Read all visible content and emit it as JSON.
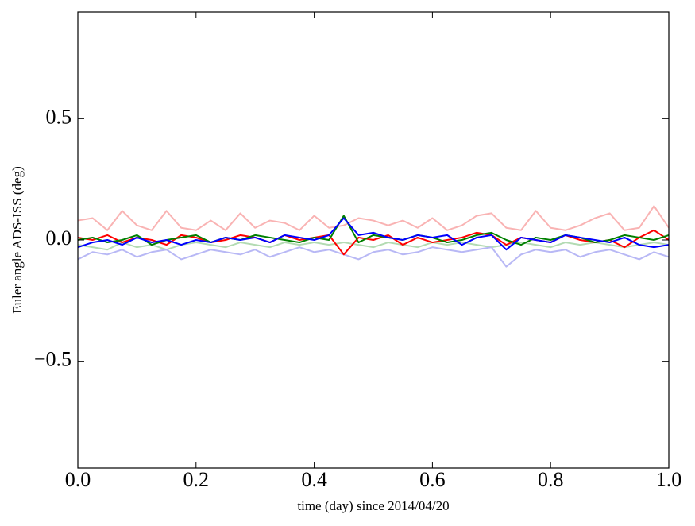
{
  "chart_data": {
    "type": "line",
    "xlabel": "time (day) since 2014/04/20",
    "ylabel": "Euler angle ADS-ISS (deg)",
    "x": [
      0,
      0.025,
      0.05,
      0.075,
      0.1,
      0.125,
      0.15,
      0.175,
      0.2,
      0.225,
      0.25,
      0.275,
      0.3,
      0.325,
      0.35,
      0.375,
      0.4,
      0.425,
      0.45,
      0.475,
      0.5,
      0.525,
      0.55,
      0.575,
      0.6,
      0.625,
      0.65,
      0.675,
      0.7,
      0.725,
      0.75,
      0.775,
      0.8,
      0.825,
      0.85,
      0.875,
      0.9,
      0.925,
      0.95,
      0.975,
      1.0
    ],
    "series": [
      {
        "color": "#f9b3b3",
        "values": [
          0.08,
          0.09,
          0.04,
          0.12,
          0.06,
          0.04,
          0.12,
          0.05,
          0.04,
          0.08,
          0.04,
          0.11,
          0.05,
          0.08,
          0.07,
          0.04,
          0.1,
          0.05,
          0.06,
          0.09,
          0.08,
          0.06,
          0.08,
          0.05,
          0.09,
          0.04,
          0.06,
          0.1,
          0.11,
          0.05,
          0.04,
          0.12,
          0.05,
          0.04,
          0.06,
          0.09,
          0.11,
          0.04,
          0.05,
          0.14,
          0.05
        ]
      },
      {
        "color": "#b3dbb3",
        "values": [
          -0.02,
          -0.03,
          -0.04,
          -0.01,
          -0.03,
          -0.02,
          -0.04,
          -0.02,
          -0.01,
          -0.02,
          -0.03,
          -0.01,
          -0.02,
          -0.03,
          -0.01,
          -0.02,
          -0.01,
          -0.02,
          -0.01,
          -0.02,
          -0.03,
          -0.01,
          -0.02,
          -0.03,
          -0.01,
          -0.02,
          -0.01,
          -0.02,
          -0.03,
          -0.02,
          -0.01,
          -0.02,
          -0.03,
          -0.01,
          -0.02,
          -0.01,
          -0.02,
          -0.03,
          -0.02,
          -0.01,
          -0.02
        ]
      },
      {
        "color": "#b8b8f5",
        "values": [
          -0.08,
          -0.05,
          -0.06,
          -0.04,
          -0.07,
          -0.05,
          -0.04,
          -0.08,
          -0.06,
          -0.04,
          -0.05,
          -0.06,
          -0.04,
          -0.07,
          -0.05,
          -0.03,
          -0.05,
          -0.04,
          -0.06,
          -0.08,
          -0.05,
          -0.04,
          -0.06,
          -0.05,
          -0.03,
          -0.04,
          -0.05,
          -0.04,
          -0.03,
          -0.11,
          -0.06,
          -0.04,
          -0.05,
          -0.04,
          -0.07,
          -0.05,
          -0.04,
          -0.06,
          -0.08,
          -0.05,
          -0.07
        ]
      },
      {
        "color": "#ff0000",
        "values": [
          0.01,
          0.0,
          0.02,
          -0.01,
          0.01,
          0.0,
          -0.02,
          0.02,
          0.01,
          -0.01,
          0.0,
          0.02,
          0.01,
          -0.01,
          0.02,
          0.0,
          0.01,
          0.02,
          -0.06,
          0.01,
          0.0,
          0.02,
          -0.02,
          0.01,
          -0.01,
          0.0,
          0.01,
          0.03,
          0.02,
          -0.02,
          0.01,
          0.0,
          -0.01,
          0.02,
          0.0,
          -0.01,
          0.0,
          -0.03,
          0.01,
          0.04,
          0.0
        ]
      },
      {
        "color": "#008000",
        "values": [
          0.0,
          0.01,
          -0.01,
          0.0,
          0.02,
          -0.02,
          0.0,
          0.01,
          0.02,
          -0.01,
          0.01,
          0.0,
          0.02,
          0.01,
          0.0,
          -0.01,
          0.01,
          0.0,
          0.1,
          -0.01,
          0.02,
          0.01,
          0.0,
          0.02,
          0.01,
          -0.01,
          0.0,
          0.02,
          0.03,
          0.0,
          -0.02,
          0.01,
          0.0,
          0.02,
          0.01,
          -0.01,
          0.0,
          0.02,
          0.01,
          0.0,
          0.02
        ]
      },
      {
        "color": "#0000ff",
        "values": [
          -0.03,
          -0.01,
          0.0,
          -0.02,
          0.01,
          -0.01,
          0.0,
          -0.02,
          0.0,
          -0.01,
          0.01,
          0.0,
          0.01,
          -0.01,
          0.02,
          0.01,
          0.0,
          0.02,
          0.09,
          0.02,
          0.03,
          0.01,
          0.0,
          0.02,
          0.01,
          0.02,
          -0.02,
          0.01,
          0.02,
          -0.04,
          0.01,
          0.0,
          -0.01,
          0.02,
          0.01,
          0.0,
          -0.01,
          0.01,
          -0.02,
          -0.03,
          -0.02
        ]
      }
    ],
    "xlim": [
      0,
      1
    ],
    "xticks": [
      {
        "value": 0,
        "label": "0.0"
      },
      0.2,
      0.4,
      0.6,
      0.8,
      {
        "value": 1,
        "label": "1.0"
      }
    ],
    "ylim": [
      -0.94,
      0.94
    ],
    "yticks": [
      {
        "value": -0.5,
        "label": "−0.5"
      },
      {
        "value": 0,
        "label": "0.0"
      },
      0.5
    ]
  }
}
